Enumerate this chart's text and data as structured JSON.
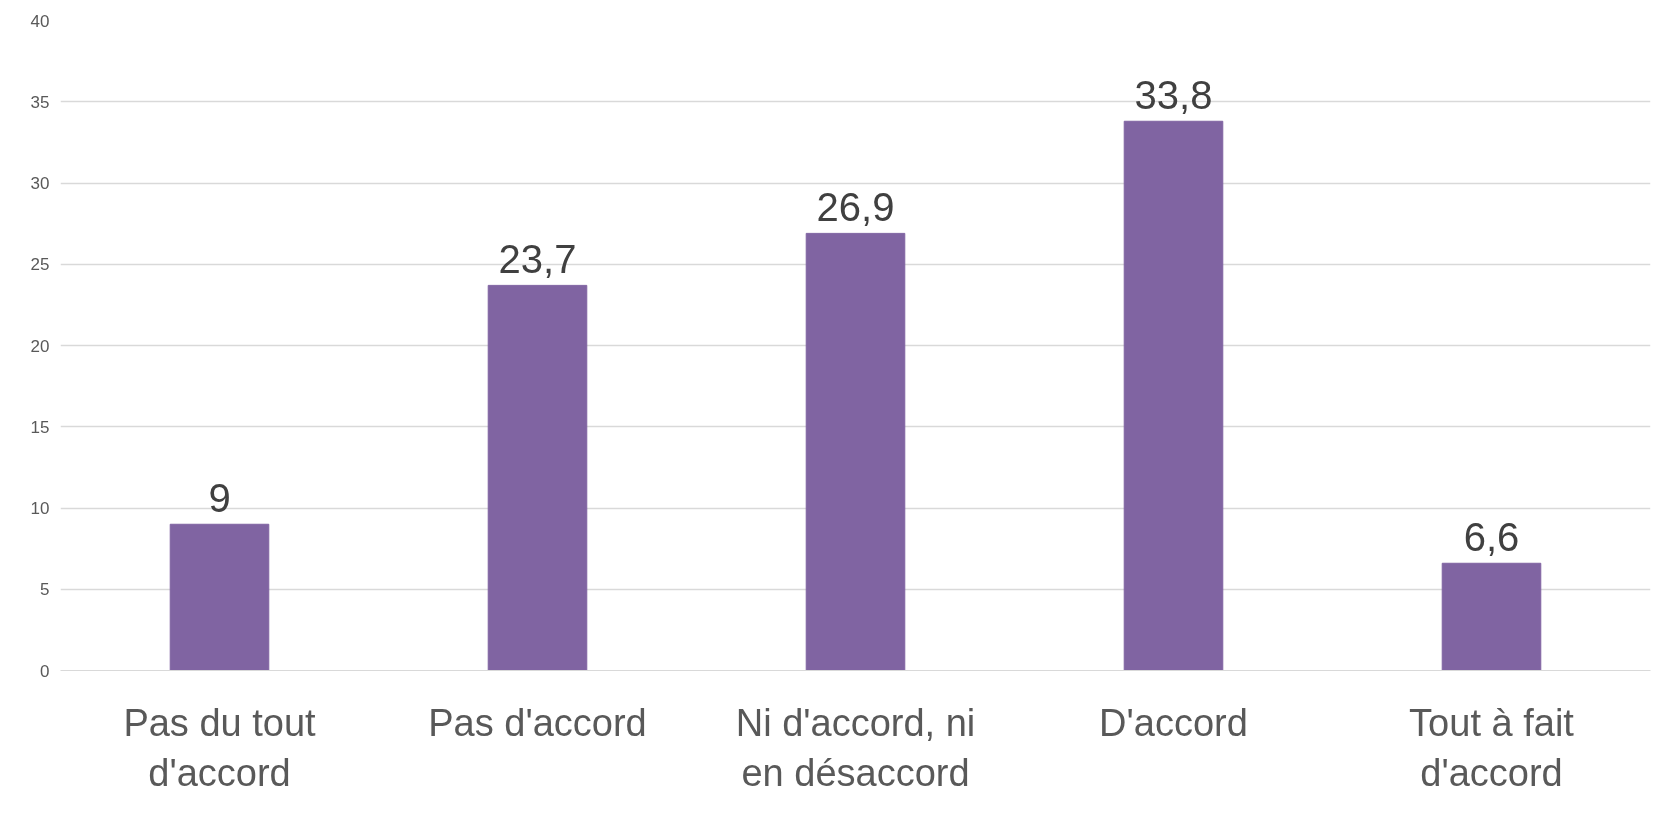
{
  "chart_data": {
    "type": "bar",
    "categories": [
      "Pas du tout d'accord",
      "Pas d'accord",
      "Ni d'accord, ni en désaccord",
      "D'accord",
      "Tout à fait d'accord"
    ],
    "values": [
      9,
      23.7,
      26.9,
      33.8,
      6.6
    ],
    "value_labels": [
      "9",
      "23,7",
      "26,9",
      "33,8",
      "6,6"
    ],
    "color": "#8064a2",
    "ylim": [
      0,
      40
    ],
    "yticks": [
      0,
      5,
      10,
      15,
      20,
      25,
      30,
      35,
      40
    ],
    "grid": "y"
  }
}
